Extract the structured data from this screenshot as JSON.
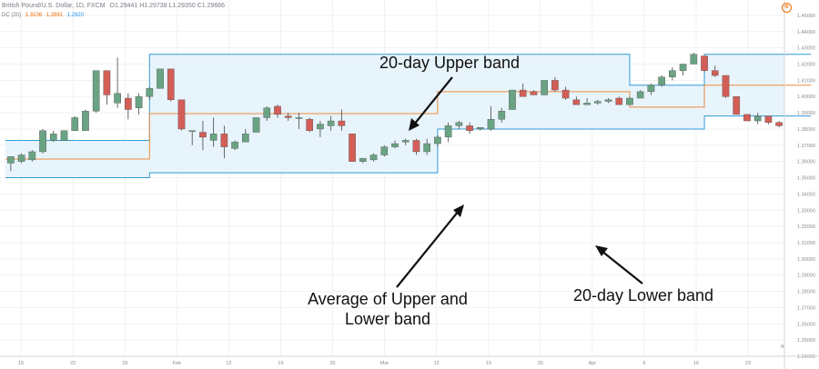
{
  "header": {
    "symbol_line": "British Pound/U.S. Dollar, 1D, FXCM",
    "ohlc": "O1.29441 H1.29738 L1.29350 C1.29666",
    "indicator_name": "DC (20)",
    "indicator_values": [
      "1.3106",
      "1.2891",
      "1.2920"
    ]
  },
  "annotations": {
    "upper": "20-day Upper band",
    "average_line1": "Average of Upper and",
    "average_line2": "Lower band",
    "lower": "20-day Lower band"
  },
  "axis": {
    "price_ticks": [
      "1.45000",
      "1.44000",
      "1.43000",
      "1.42000",
      "1.41000",
      "1.40000",
      "1.39000",
      "1.38000",
      "1.37000",
      "1.36000",
      "1.35000",
      "1.34000",
      "1.33000",
      "1.32000",
      "1.31000",
      "1.30000",
      "1.29000",
      "1.28000",
      "1.27000",
      "1.26000",
      "1.25000",
      "1.24000"
    ],
    "time_ticks": [
      "15",
      "22",
      "29",
      "Feb",
      "12",
      "19",
      "26",
      "Mar",
      "12",
      "19",
      "26",
      "Apr",
      "9",
      "16",
      "23"
    ]
  },
  "colors": {
    "up": "#6aa383",
    "down": "#d25e57",
    "band_line": "#2f9bd4",
    "band_fill": "#e8f4fc",
    "mid_line": "#ef8b3c",
    "arrow": "#111111"
  },
  "icons": {
    "settings": "settings-icon",
    "scroll": "scroll-right-icon"
  },
  "chart_data": {
    "type": "candlestick",
    "y_range": [
      1.24,
      1.455
    ],
    "candles": [
      {
        "o": 1.359,
        "h": 1.363,
        "l": 1.354,
        "c": 1.363
      },
      {
        "o": 1.36,
        "h": 1.365,
        "l": 1.359,
        "c": 1.364
      },
      {
        "o": 1.361,
        "h": 1.367,
        "l": 1.36,
        "c": 1.366
      },
      {
        "o": 1.366,
        "h": 1.38,
        "l": 1.365,
        "c": 1.379
      },
      {
        "o": 1.373,
        "h": 1.379,
        "l": 1.372,
        "c": 1.377
      },
      {
        "o": 1.373,
        "h": 1.379,
        "l": 1.373,
        "c": 1.379
      },
      {
        "o": 1.379,
        "h": 1.388,
        "l": 1.379,
        "c": 1.387
      },
      {
        "o": 1.379,
        "h": 1.392,
        "l": 1.379,
        "c": 1.391
      },
      {
        "o": 1.391,
        "h": 1.416,
        "l": 1.39,
        "c": 1.416
      },
      {
        "o": 1.416,
        "h": 1.416,
        "l": 1.395,
        "c": 1.401
      },
      {
        "o": 1.396,
        "h": 1.424,
        "l": 1.393,
        "c": 1.402
      },
      {
        "o": 1.399,
        "h": 1.402,
        "l": 1.386,
        "c": 1.392
      },
      {
        "o": 1.393,
        "h": 1.402,
        "l": 1.389,
        "c": 1.4
      },
      {
        "o": 1.4,
        "h": 1.406,
        "l": 1.398,
        "c": 1.405
      },
      {
        "o": 1.405,
        "h": 1.417,
        "l": 1.405,
        "c": 1.417
      },
      {
        "o": 1.417,
        "h": 1.417,
        "l": 1.397,
        "c": 1.398
      },
      {
        "o": 1.398,
        "h": 1.398,
        "l": 1.379,
        "c": 1.38
      },
      {
        "o": 1.379,
        "h": 1.379,
        "l": 1.37,
        "c": 1.379
      },
      {
        "o": 1.378,
        "h": 1.385,
        "l": 1.367,
        "c": 1.375
      },
      {
        "o": 1.373,
        "h": 1.387,
        "l": 1.369,
        "c": 1.377
      },
      {
        "o": 1.377,
        "h": 1.382,
        "l": 1.362,
        "c": 1.369
      },
      {
        "o": 1.368,
        "h": 1.373,
        "l": 1.367,
        "c": 1.372
      },
      {
        "o": 1.372,
        "h": 1.38,
        "l": 1.372,
        "c": 1.377
      },
      {
        "o": 1.378,
        "h": 1.387,
        "l": 1.378,
        "c": 1.387
      },
      {
        "o": 1.387,
        "h": 1.394,
        "l": 1.385,
        "c": 1.393
      },
      {
        "o": 1.394,
        "h": 1.395,
        "l": 1.387,
        "c": 1.389
      },
      {
        "o": 1.388,
        "h": 1.39,
        "l": 1.385,
        "c": 1.387
      },
      {
        "o": 1.387,
        "h": 1.39,
        "l": 1.38,
        "c": 1.387
      },
      {
        "o": 1.386,
        "h": 1.387,
        "l": 1.378,
        "c": 1.379
      },
      {
        "o": 1.38,
        "h": 1.385,
        "l": 1.375,
        "c": 1.383
      },
      {
        "o": 1.382,
        "h": 1.388,
        "l": 1.379,
        "c": 1.385
      },
      {
        "o": 1.385,
        "h": 1.392,
        "l": 1.379,
        "c": 1.382
      },
      {
        "o": 1.377,
        "h": 1.377,
        "l": 1.36,
        "c": 1.36
      },
      {
        "o": 1.36,
        "h": 1.362,
        "l": 1.359,
        "c": 1.362
      },
      {
        "o": 1.361,
        "h": 1.365,
        "l": 1.36,
        "c": 1.364
      },
      {
        "o": 1.364,
        "h": 1.37,
        "l": 1.363,
        "c": 1.369
      },
      {
        "o": 1.369,
        "h": 1.373,
        "l": 1.368,
        "c": 1.371
      },
      {
        "o": 1.372,
        "h": 1.374,
        "l": 1.37,
        "c": 1.373
      },
      {
        "o": 1.373,
        "h": 1.374,
        "l": 1.364,
        "c": 1.366
      },
      {
        "o": 1.366,
        "h": 1.374,
        "l": 1.364,
        "c": 1.371
      },
      {
        "o": 1.371,
        "h": 1.376,
        "l": 1.369,
        "c": 1.375
      },
      {
        "o": 1.375,
        "h": 1.384,
        "l": 1.372,
        "c": 1.382
      },
      {
        "o": 1.382,
        "h": 1.385,
        "l": 1.38,
        "c": 1.384
      },
      {
        "o": 1.382,
        "h": 1.384,
        "l": 1.377,
        "c": 1.379
      },
      {
        "o": 1.38,
        "h": 1.381,
        "l": 1.379,
        "c": 1.381
      },
      {
        "o": 1.38,
        "h": 1.394,
        "l": 1.379,
        "c": 1.386
      },
      {
        "o": 1.386,
        "h": 1.393,
        "l": 1.384,
        "c": 1.391
      },
      {
        "o": 1.392,
        "h": 1.404,
        "l": 1.392,
        "c": 1.404
      },
      {
        "o": 1.404,
        "h": 1.408,
        "l": 1.401,
        "c": 1.4
      },
      {
        "o": 1.403,
        "h": 1.404,
        "l": 1.401,
        "c": 1.401
      },
      {
        "o": 1.401,
        "h": 1.41,
        "l": 1.401,
        "c": 1.41
      },
      {
        "o": 1.41,
        "h": 1.412,
        "l": 1.403,
        "c": 1.404
      },
      {
        "o": 1.404,
        "h": 1.406,
        "l": 1.398,
        "c": 1.399
      },
      {
        "o": 1.398,
        "h": 1.4,
        "l": 1.395,
        "c": 1.395
      },
      {
        "o": 1.395,
        "h": 1.399,
        "l": 1.395,
        "c": 1.396
      },
      {
        "o": 1.396,
        "h": 1.398,
        "l": 1.395,
        "c": 1.397
      },
      {
        "o": 1.397,
        "h": 1.399,
        "l": 1.396,
        "c": 1.398
      },
      {
        "o": 1.399,
        "h": 1.4,
        "l": 1.397,
        "c": 1.395
      },
      {
        "o": 1.395,
        "h": 1.4,
        "l": 1.395,
        "c": 1.399
      },
      {
        "o": 1.399,
        "h": 1.404,
        "l": 1.399,
        "c": 1.403
      },
      {
        "o": 1.403,
        "h": 1.408,
        "l": 1.401,
        "c": 1.407
      },
      {
        "o": 1.407,
        "h": 1.413,
        "l": 1.406,
        "c": 1.412
      },
      {
        "o": 1.412,
        "h": 1.418,
        "l": 1.41,
        "c": 1.416
      },
      {
        "o": 1.416,
        "h": 1.42,
        "l": 1.413,
        "c": 1.42
      },
      {
        "o": 1.42,
        "h": 1.427,
        "l": 1.42,
        "c": 1.426
      },
      {
        "o": 1.425,
        "h": 1.425,
        "l": 1.415,
        "c": 1.416
      },
      {
        "o": 1.416,
        "h": 1.419,
        "l": 1.412,
        "c": 1.413
      },
      {
        "o": 1.413,
        "h": 1.413,
        "l": 1.399,
        "c": 1.4
      },
      {
        "o": 1.4,
        "h": 1.4,
        "l": 1.389,
        "c": 1.389
      },
      {
        "o": 1.389,
        "h": 1.389,
        "l": 1.385,
        "c": 1.385
      },
      {
        "o": 1.385,
        "h": 1.39,
        "l": 1.383,
        "c": 1.388
      },
      {
        "o": 1.388,
        "h": 1.388,
        "l": 1.383,
        "c": 1.384
      },
      {
        "o": 1.384,
        "h": 1.385,
        "l": 1.381,
        "c": 1.382
      }
    ],
    "band_x": [
      1,
      13,
      40,
      58,
      65,
      75
    ],
    "band_upper": [
      1.373,
      1.426,
      1.426,
      1.407,
      1.426,
      1.426
    ],
    "band_lower": [
      1.35,
      1.353,
      1.38,
      1.38,
      1.388,
      1.388
    ]
  }
}
